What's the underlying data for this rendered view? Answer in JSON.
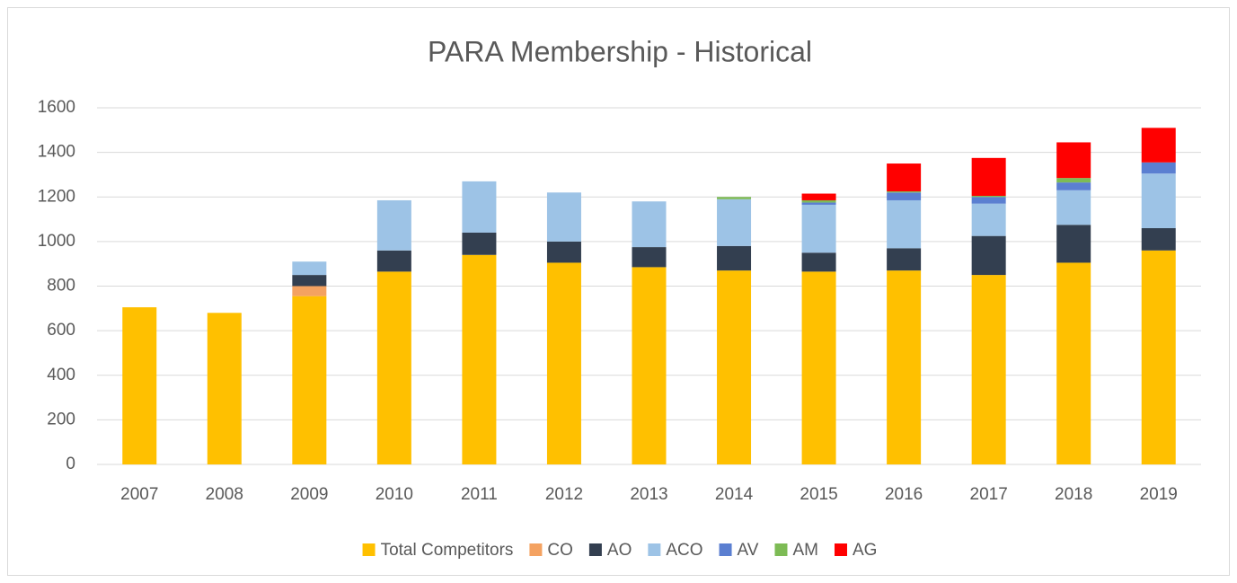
{
  "chart_data": {
    "type": "stacked_bar",
    "title": "PARA Membership - Historical",
    "categories": [
      "2007",
      "2008",
      "2009",
      "2010",
      "2011",
      "2012",
      "2013",
      "2014",
      "2015",
      "2016",
      "2017",
      "2018",
      "2019"
    ],
    "series": [
      {
        "name": "Total Competitors",
        "color": "#ffc000",
        "values": [
          705,
          680,
          755,
          865,
          940,
          905,
          885,
          870,
          865,
          870,
          850,
          905,
          960
        ]
      },
      {
        "name": "CO",
        "color": "#f4a261",
        "values": [
          0,
          0,
          45,
          0,
          0,
          0,
          0,
          0,
          0,
          0,
          0,
          0,
          0
        ]
      },
      {
        "name": "AO",
        "color": "#333f50",
        "values": [
          0,
          0,
          50,
          95,
          100,
          95,
          90,
          110,
          85,
          100,
          175,
          170,
          100
        ]
      },
      {
        "name": "ACO",
        "color": "#9dc3e6",
        "values": [
          0,
          0,
          60,
          225,
          230,
          220,
          205,
          210,
          215,
          215,
          145,
          155,
          245
        ]
      },
      {
        "name": "AV",
        "color": "#5b7fd1",
        "values": [
          0,
          0,
          0,
          0,
          0,
          0,
          0,
          0,
          10,
          35,
          30,
          35,
          50
        ]
      },
      {
        "name": "AM",
        "color": "#7dbb55",
        "values": [
          0,
          0,
          0,
          0,
          0,
          0,
          0,
          10,
          10,
          5,
          5,
          20,
          0
        ]
      },
      {
        "name": "AG",
        "color": "#ff0000",
        "values": [
          0,
          0,
          0,
          0,
          0,
          0,
          0,
          0,
          30,
          125,
          170,
          160,
          155
        ]
      }
    ],
    "ylim": [
      0,
      1600
    ],
    "yticks": [
      0,
      200,
      400,
      600,
      800,
      1000,
      1200,
      1400,
      1600
    ],
    "grid": true,
    "legend": "bottom"
  }
}
